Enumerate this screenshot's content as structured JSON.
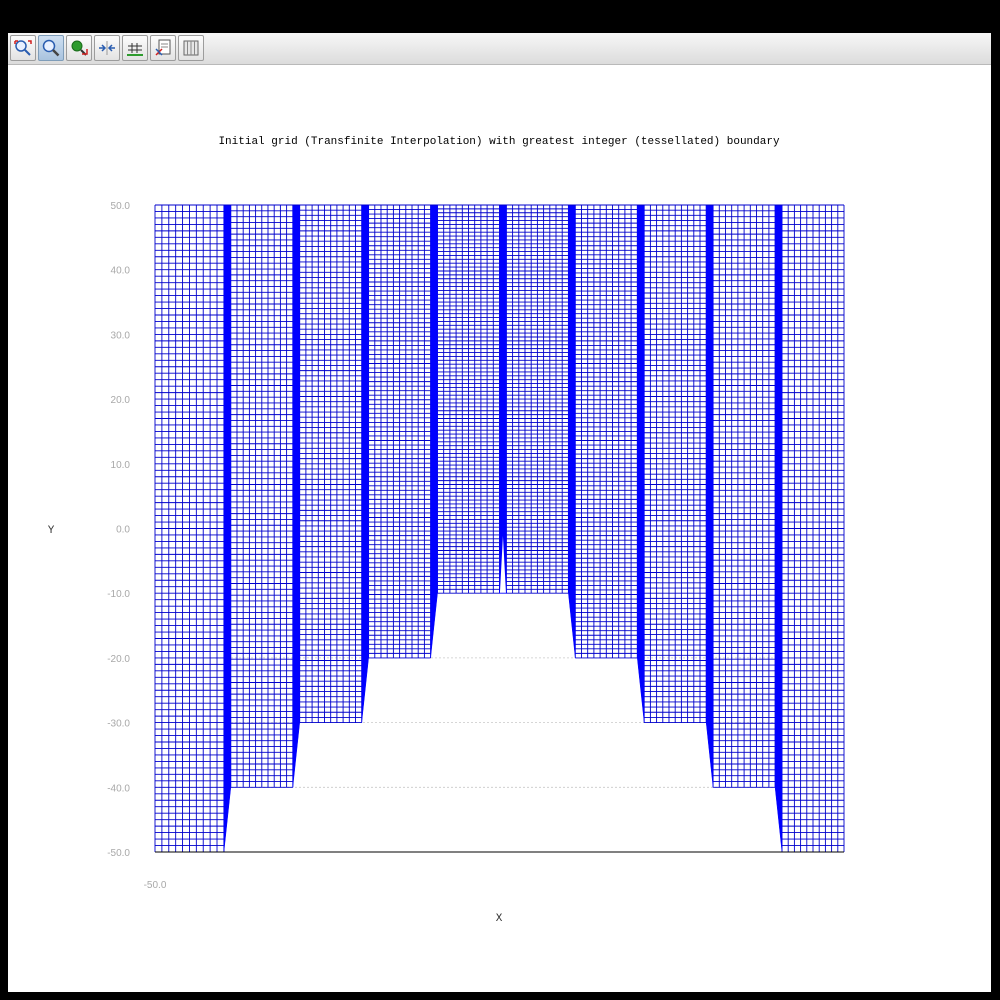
{
  "toolbar": {
    "buttons": [
      {
        "icon": "zoom-reset-icon",
        "tooltip": ""
      },
      {
        "icon": "zoom-icon",
        "tooltip": ""
      },
      {
        "icon": "pan-icon",
        "tooltip": ""
      },
      {
        "icon": "fit-icon",
        "tooltip": ""
      },
      {
        "icon": "grid-toggle-icon",
        "tooltip": ""
      },
      {
        "icon": "export-icon",
        "tooltip": ""
      },
      {
        "icon": "table-icon",
        "tooltip": ""
      }
    ]
  },
  "chart_data": {
    "type": "mesh",
    "title": "Initial grid (Transfinite Interpolation) with greatest integer (tessellated) boundary",
    "xlabel": "X",
    "ylabel": "Y",
    "xlim": [
      -50,
      50
    ],
    "ylim": [
      -50,
      50
    ],
    "x_ticks": [
      "-50.0"
    ],
    "y_ticks": [
      "50.0",
      "40.0",
      "30.0",
      "20.0",
      "10.0",
      "0.0",
      "-10.0",
      "-20.0",
      "-30.0",
      "-40.0",
      "-50.0"
    ],
    "reference_lines_y": [
      -20,
      -30,
      -40
    ],
    "boundary": {
      "top_y": 50,
      "bottom_profile": [
        {
          "x_start": -50,
          "x_end": -40,
          "y": -50
        },
        {
          "x_start": -39,
          "x_end": -30,
          "y": -40
        },
        {
          "x_start": -29,
          "x_end": -20,
          "y": -30
        },
        {
          "x_start": -19,
          "x_end": -10,
          "y": -20
        },
        {
          "x_start": -9,
          "x_end": 0,
          "y": -10
        },
        {
          "x_start": 1,
          "x_end": 10,
          "y": -10
        },
        {
          "x_start": 11,
          "x_end": 20,
          "y": -20
        },
        {
          "x_start": 21,
          "x_end": 30,
          "y": -30
        },
        {
          "x_start": 31,
          "x_end": 40,
          "y": -40
        },
        {
          "x_start": 41,
          "x_end": 50,
          "y": -50
        }
      ],
      "step_peak": {
        "x": 0.5,
        "y": 0
      }
    },
    "columns_per_segment": 11,
    "rows": 100,
    "colors": {
      "mesh": "#0000cc",
      "dense": "#0000ff",
      "reference": "#c8c8c8",
      "bottom": "#000000"
    }
  }
}
